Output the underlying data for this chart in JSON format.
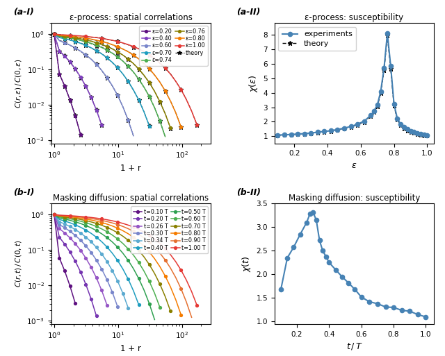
{
  "title_aI": "ε-process: spatial correlations",
  "title_aII": "ε-process: susceptibility",
  "title_bI": "Masking diffusion: spatial correlations",
  "title_bII": "Masking diffusion: susceptibility",
  "label_aI": "(a-I)",
  "label_aII": "(a-II)",
  "label_bI": "(b-I)",
  "label_bII": "(b-II)",
  "xlabel_corr": "1 + r",
  "ylabel_corr_a": "$C(r,\\epsilon)\\,/\\,C(0,\\epsilon)$",
  "ylabel_corr_b": "$C(r,t)\\,/\\,C(0,t)$",
  "xlabel_susc_a": "$\\epsilon$",
  "ylabel_susc_a": "$\\chi(\\epsilon)$",
  "xlabel_susc_b": "$t\\,/\\,T$",
  "ylabel_susc_b": "$\\chi(t)$",
  "eps_values": [
    0.2,
    0.4,
    0.6,
    0.7,
    0.74,
    0.76,
    0.8,
    1.0
  ],
  "eps_colors": [
    "#5e1080",
    "#8040c0",
    "#7986cb",
    "#1e9dbf",
    "#4caf50",
    "#8a8000",
    "#f57c00",
    "#e53935"
  ],
  "eps_decay": [
    3.5,
    1.5,
    0.6,
    0.33,
    0.225,
    0.175,
    0.125,
    0.075
  ],
  "t_values": [
    0.1,
    0.2,
    0.26,
    0.3,
    0.34,
    0.4,
    0.5,
    0.6,
    0.7,
    0.8,
    0.9,
    1.0
  ],
  "t_colors": [
    "#5e1080",
    "#7535b0",
    "#9555c5",
    "#7986cb",
    "#5baad0",
    "#1e9dbf",
    "#2ea050",
    "#4caf50",
    "#8a8000",
    "#f57c00",
    "#e57030",
    "#e53935"
  ],
  "t_decay": [
    3.8,
    2.0,
    1.25,
    0.9,
    0.65,
    0.45,
    0.32,
    0.24,
    0.18,
    0.135,
    0.1,
    0.075
  ],
  "susc_eps": [
    0.1,
    0.14,
    0.18,
    0.22,
    0.26,
    0.3,
    0.34,
    0.38,
    0.42,
    0.46,
    0.5,
    0.54,
    0.58,
    0.62,
    0.66,
    0.68,
    0.7,
    0.72,
    0.74,
    0.76,
    0.78,
    0.8,
    0.82,
    0.84,
    0.86,
    0.88,
    0.9,
    0.92,
    0.94,
    0.96,
    0.98,
    1.0
  ],
  "susc_chi_exp": [
    1.08,
    1.1,
    1.12,
    1.15,
    1.18,
    1.22,
    1.28,
    1.33,
    1.38,
    1.46,
    1.56,
    1.67,
    1.83,
    2.04,
    2.44,
    2.74,
    3.18,
    4.1,
    5.7,
    8.1,
    5.85,
    3.22,
    2.22,
    1.82,
    1.62,
    1.47,
    1.37,
    1.3,
    1.22,
    1.16,
    1.11,
    1.08
  ],
  "susc_chi_theory": [
    1.07,
    1.09,
    1.11,
    1.14,
    1.17,
    1.21,
    1.27,
    1.32,
    1.37,
    1.45,
    1.54,
    1.64,
    1.79,
    1.99,
    2.39,
    2.68,
    3.08,
    3.98,
    5.55,
    7.95,
    5.65,
    3.1,
    2.15,
    1.77,
    1.56,
    1.41,
    1.31,
    1.26,
    1.18,
    1.13,
    1.08,
    1.05
  ],
  "susc_t": [
    0.1,
    0.14,
    0.18,
    0.22,
    0.26,
    0.28,
    0.3,
    0.32,
    0.34,
    0.36,
    0.38,
    0.4,
    0.44,
    0.48,
    0.52,
    0.56,
    0.6,
    0.65,
    0.7,
    0.75,
    0.8,
    0.85,
    0.9,
    0.95,
    1.0
  ],
  "susc_chi_b": [
    1.68,
    2.35,
    2.58,
    2.85,
    3.1,
    3.28,
    3.32,
    3.15,
    2.72,
    2.5,
    2.38,
    2.25,
    2.1,
    1.95,
    1.82,
    1.68,
    1.52,
    1.42,
    1.38,
    1.31,
    1.3,
    1.24,
    1.22,
    1.15,
    1.1
  ]
}
